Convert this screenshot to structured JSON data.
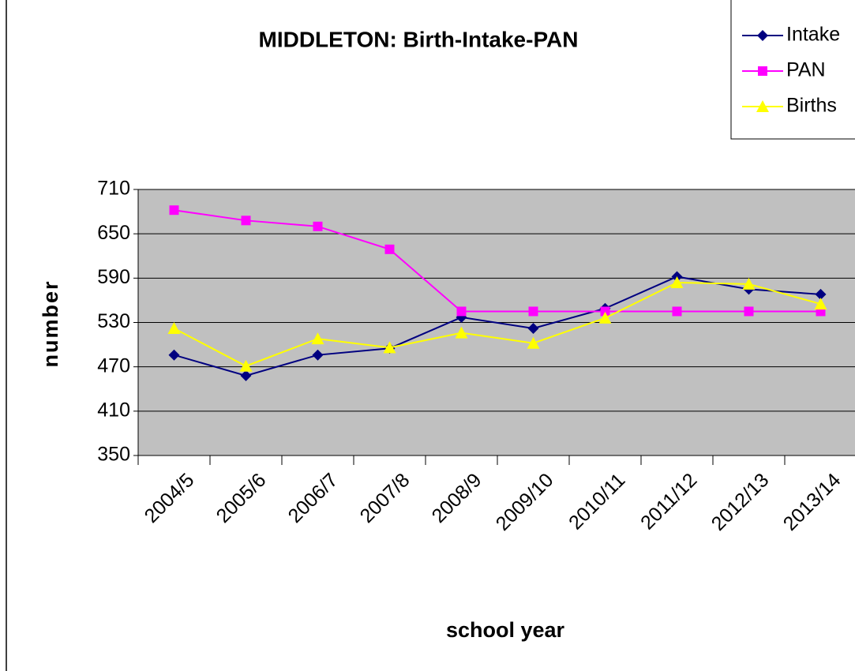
{
  "chart_data": {
    "type": "line",
    "title": "MIDDLETON: Birth-Intake-PAN",
    "x_label": "school year",
    "y_label": "number",
    "categories": [
      "2004/5",
      "2005/6",
      "2006/7",
      "2007/8",
      "2008/9",
      "2009/10",
      "2010/11",
      "2011/12",
      "2012/13",
      "2013/14"
    ],
    "series": [
      {
        "name": "Intake",
        "color": "#000080",
        "marker": "diamond",
        "values": [
          486,
          458,
          486,
          495,
          537,
          522,
          549,
          592,
          575,
          568
        ]
      },
      {
        "name": "PAN",
        "color": "#ff00ff",
        "marker": "square",
        "values": [
          682,
          668,
          660,
          629,
          545,
          545,
          545,
          545,
          545,
          545
        ]
      },
      {
        "name": "Births",
        "color": "#ffff00",
        "marker": "triangle",
        "values": [
          522,
          471,
          508,
          496,
          516,
          502,
          536,
          584,
          582,
          555
        ]
      }
    ],
    "ylim": [
      350,
      710
    ],
    "yticks": [
      350,
      410,
      470,
      530,
      590,
      650,
      710
    ],
    "grid": true,
    "legend": "top-right",
    "plot_background": "#c0c0c0"
  }
}
